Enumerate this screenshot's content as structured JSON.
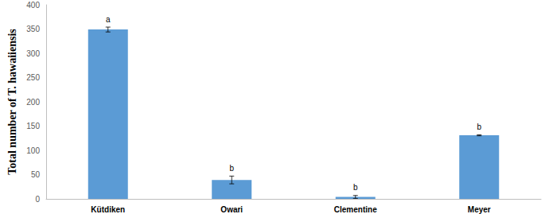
{
  "chart_data": {
    "type": "bar",
    "categories": [
      "Kütdiken",
      "Owari",
      "Clementine",
      "Meyer"
    ],
    "values": [
      349,
      39,
      4,
      131
    ],
    "errors": [
      5,
      8,
      3,
      1
    ],
    "letters": [
      "a",
      "b",
      "b",
      "b"
    ],
    "color": "#5b9bd5",
    "ylabel": "Total number of T. hawaiiensis",
    "ylim": [
      0,
      400
    ],
    "yticks": [
      0,
      50,
      100,
      150,
      200,
      250,
      300,
      350,
      400
    ],
    "grid": false
  }
}
